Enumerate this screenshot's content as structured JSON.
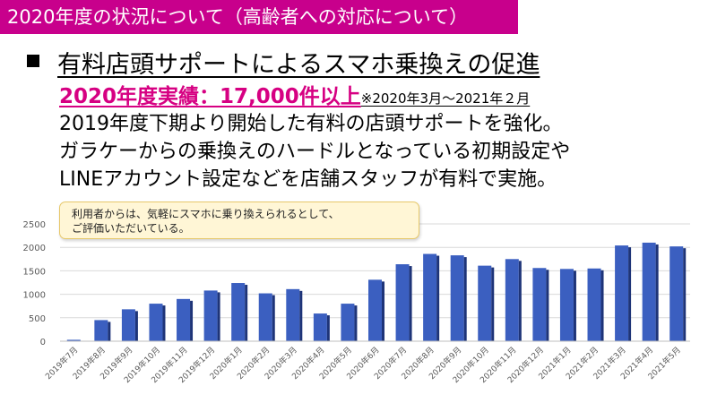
{
  "header": {
    "title": "2020年度の状況について（高齢者への対応について）"
  },
  "main": {
    "heading": "有料店頭サポートによるスマホ乗換えの促進",
    "results": "2020年度実績：17,000件以上",
    "results_period": "※2020年3月～2021年２月",
    "description": [
      "2019年度下期より開始した有料の店頭サポートを強化。",
      "ガラケーからの乗換えのハードルとなっている初期設定や",
      "LINEアカウント設定などを店舗スタッフが有料で実施。"
    ]
  },
  "callout": {
    "lines": [
      "利用者からは、気軽にスマホに乗り換えられるとして、",
      "ご評価いただいている。"
    ]
  },
  "colors": {
    "title_bg": "#c8008c",
    "highlight": "#d60082",
    "bar": "#3b5fc0"
  },
  "chart_data": {
    "type": "bar",
    "categories": [
      "2019年7月",
      "2019年8月",
      "2019年9月",
      "2019年10月",
      "2019年11月",
      "2019年12月",
      "2020年1月",
      "2020年2月",
      "2020年3月",
      "2020年4月",
      "2020年5月",
      "2020年6月",
      "2020年7月",
      "2020年8月",
      "2020年9月",
      "2020年10月",
      "2020年11月",
      "2020年12月",
      "2021年1月",
      "2021年2月",
      "2021年3月",
      "2021年4月",
      "2021年5月"
    ],
    "values": [
      30,
      450,
      680,
      800,
      900,
      1080,
      1240,
      1020,
      1110,
      590,
      800,
      1310,
      1640,
      1860,
      1830,
      1610,
      1750,
      1560,
      1540,
      1550,
      2040,
      2100,
      2020
    ],
    "yticks": [
      0,
      500,
      1000,
      1500,
      2000,
      2500
    ],
    "ylim": [
      0,
      2500
    ],
    "grid": true,
    "legend": "none"
  }
}
